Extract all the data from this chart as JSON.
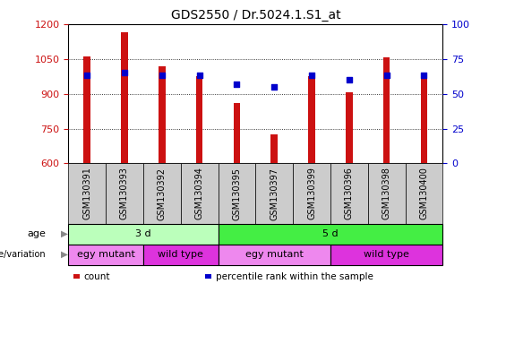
{
  "title": "GDS2550 / Dr.5024.1.S1_at",
  "samples": [
    "GSM130391",
    "GSM130393",
    "GSM130392",
    "GSM130394",
    "GSM130395",
    "GSM130397",
    "GSM130399",
    "GSM130396",
    "GSM130398",
    "GSM130400"
  ],
  "counts": [
    1062,
    1165,
    1020,
    975,
    860,
    725,
    975,
    907,
    1055,
    970
  ],
  "percentile_ranks": [
    63,
    65,
    63,
    63,
    57,
    55,
    63,
    60,
    63,
    63
  ],
  "ylim_left": [
    600,
    1200
  ],
  "ylim_right": [
    0,
    100
  ],
  "yticks_left": [
    600,
    750,
    900,
    1050,
    1200
  ],
  "yticks_right": [
    0,
    25,
    50,
    75,
    100
  ],
  "bar_color": "#cc1111",
  "dot_color": "#0000cc",
  "age_groups": [
    {
      "label": "3 d",
      "start": 0,
      "end": 4,
      "color": "#bbffbb"
    },
    {
      "label": "5 d",
      "start": 4,
      "end": 10,
      "color": "#44ee44"
    }
  ],
  "genotype_groups": [
    {
      "label": "egy mutant",
      "start": 0,
      "end": 2,
      "color": "#ee88ee"
    },
    {
      "label": "wild type",
      "start": 2,
      "end": 4,
      "color": "#dd33dd"
    },
    {
      "label": "egy mutant",
      "start": 4,
      "end": 7,
      "color": "#ee88ee"
    },
    {
      "label": "wild type",
      "start": 7,
      "end": 10,
      "color": "#dd33dd"
    }
  ],
  "age_label": "age",
  "genotype_label": "genotype/variation",
  "legend_items": [
    {
      "color": "#cc1111",
      "label": "count"
    },
    {
      "color": "#0000cc",
      "label": "percentile rank within the sample"
    }
  ],
  "bar_width": 0.18,
  "background_color": "#ffffff",
  "plot_bg_color": "#ffffff",
  "tick_color_left": "#cc1111",
  "tick_color_right": "#0000cc",
  "title_fontsize": 10,
  "tick_fontsize": 8,
  "sample_bg_color": "#cccccc",
  "sample_label_fontsize": 7
}
